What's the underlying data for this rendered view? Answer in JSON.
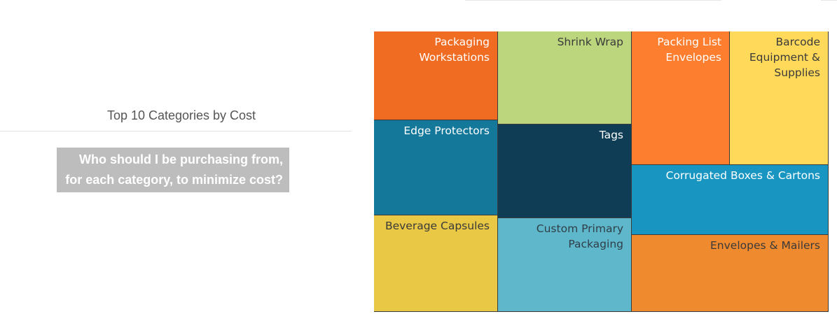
{
  "panel": {
    "title": "Top 10 Categories by Cost",
    "question_line1": "Who should I be purchasing from,",
    "question_line2": "for each category, to minimize cost?"
  },
  "chart_data": {
    "type": "treemap",
    "title": "",
    "tiles": [
      {
        "name": "Packaging\nWorkstations",
        "color": "#ef6c22",
        "text_color": "#ffffff"
      },
      {
        "name": "Shrink Wrap",
        "color": "#bcd67e",
        "text_color": "#3a3a3a"
      },
      {
        "name": "Packing List\nEnvelopes",
        "color": "#fd7e2e",
        "text_color": "#ffffff"
      },
      {
        "name": "Barcode\nEquipment &\nSupplies",
        "color": "#ffd95a",
        "text_color": "#3a3a3a"
      },
      {
        "name": "Edge Protectors",
        "color": "#14789a",
        "text_color": "#ffffff"
      },
      {
        "name": "Tags",
        "color": "#0e3d55",
        "text_color": "#ffffff"
      },
      {
        "name": "Corrugated Boxes & Cartons",
        "color": "#1896c1",
        "text_color": "#ffffff"
      },
      {
        "name": "Beverage Capsules",
        "color": "#e8c844",
        "text_color": "#3a3a3a"
      },
      {
        "name": "Custom Primary\nPackaging",
        "color": "#5fb7cb",
        "text_color": "#2f3f48"
      },
      {
        "name": "Envelopes & Mailers",
        "color": "#ef8a2e",
        "text_color": "#3a3a3a"
      }
    ]
  }
}
